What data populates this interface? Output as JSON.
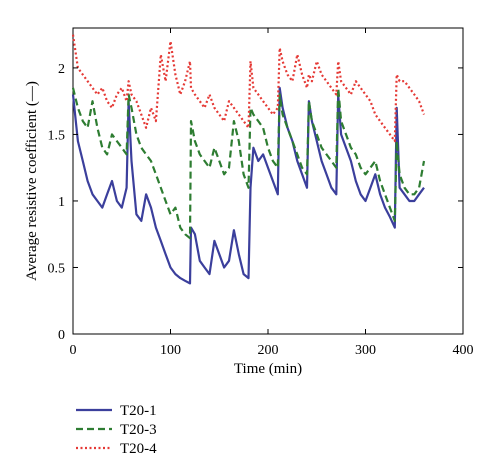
{
  "chart_data": {
    "type": "line",
    "xlabel": "Time (min)",
    "ylabel": "Average resistive coefficient (—)",
    "xlim": [
      0,
      400
    ],
    "ylim": [
      0,
      2.3
    ],
    "xticks": [
      0,
      100,
      200,
      300,
      400
    ],
    "yticks": [
      0,
      0.5,
      1,
      1.5,
      2
    ],
    "grid": false,
    "legend_position": "below",
    "series": [
      {
        "name": "T20-1",
        "color": "#3b3f9c",
        "dash": "solid",
        "x": [
          0,
          5,
          10,
          15,
          20,
          25,
          30,
          35,
          40,
          45,
          50,
          55,
          57,
          60,
          65,
          70,
          75,
          80,
          85,
          90,
          95,
          100,
          105,
          110,
          115,
          120,
          121,
          125,
          130,
          135,
          140,
          145,
          150,
          155,
          160,
          165,
          170,
          175,
          180,
          182,
          185,
          190,
          195,
          200,
          205,
          210,
          212,
          215,
          220,
          225,
          230,
          235,
          240,
          242,
          245,
          250,
          255,
          260,
          265,
          270,
          272,
          275,
          280,
          285,
          290,
          295,
          300,
          305,
          310,
          315,
          320,
          325,
          330,
          332,
          335,
          340,
          345,
          350,
          355,
          360
        ],
        "y": [
          1.8,
          1.45,
          1.3,
          1.15,
          1.05,
          1.0,
          0.95,
          1.05,
          1.15,
          1.0,
          0.95,
          1.1,
          1.75,
          1.3,
          0.9,
          0.85,
          1.05,
          0.95,
          0.8,
          0.7,
          0.6,
          0.5,
          0.45,
          0.42,
          0.4,
          0.38,
          0.8,
          0.75,
          0.55,
          0.5,
          0.45,
          0.7,
          0.6,
          0.5,
          0.55,
          0.78,
          0.6,
          0.45,
          0.42,
          1.1,
          1.4,
          1.3,
          1.35,
          1.25,
          1.15,
          1.05,
          1.85,
          1.7,
          1.55,
          1.45,
          1.3,
          1.2,
          1.1,
          1.75,
          1.6,
          1.45,
          1.3,
          1.2,
          1.1,
          1.05,
          1.8,
          1.5,
          1.4,
          1.3,
          1.15,
          1.05,
          1.0,
          1.1,
          1.2,
          1.05,
          0.95,
          0.88,
          0.8,
          1.7,
          1.1,
          1.05,
          1.0,
          1.0,
          1.05,
          1.1
        ]
      },
      {
        "name": "T20-3",
        "color": "#2e7d32",
        "dash": "dashed",
        "x": [
          0,
          5,
          10,
          15,
          20,
          25,
          30,
          35,
          40,
          45,
          50,
          55,
          57,
          60,
          65,
          70,
          75,
          80,
          85,
          90,
          95,
          100,
          105,
          110,
          115,
          120,
          121,
          125,
          130,
          135,
          140,
          145,
          150,
          155,
          160,
          165,
          170,
          175,
          180,
          182,
          185,
          190,
          195,
          200,
          205,
          210,
          212,
          215,
          220,
          225,
          230,
          235,
          240,
          242,
          245,
          250,
          255,
          260,
          265,
          270,
          272,
          275,
          280,
          285,
          290,
          295,
          300,
          305,
          310,
          315,
          320,
          325,
          330,
          332,
          335,
          340,
          345,
          350,
          355,
          360
        ],
        "y": [
          1.85,
          1.7,
          1.6,
          1.55,
          1.75,
          1.55,
          1.4,
          1.35,
          1.5,
          1.45,
          1.4,
          1.35,
          1.8,
          1.7,
          1.5,
          1.4,
          1.35,
          1.3,
          1.2,
          1.1,
          1.0,
          0.9,
          0.95,
          0.8,
          0.75,
          0.72,
          1.6,
          1.45,
          1.35,
          1.3,
          1.25,
          1.4,
          1.3,
          1.2,
          1.25,
          1.6,
          1.45,
          1.2,
          1.1,
          1.7,
          1.65,
          1.6,
          1.55,
          1.4,
          1.3,
          1.25,
          1.8,
          1.65,
          1.55,
          1.45,
          1.35,
          1.25,
          1.2,
          1.75,
          1.6,
          1.5,
          1.4,
          1.35,
          1.3,
          1.25,
          1.85,
          1.6,
          1.5,
          1.4,
          1.35,
          1.25,
          1.2,
          1.25,
          1.3,
          1.15,
          1.05,
          0.95,
          0.85,
          1.45,
          1.2,
          1.1,
          1.05,
          1.05,
          1.1,
          1.3
        ]
      },
      {
        "name": "T20-4",
        "color": "#e53935",
        "dash": "dotted",
        "x": [
          0,
          5,
          10,
          15,
          20,
          25,
          30,
          35,
          40,
          45,
          50,
          55,
          57,
          60,
          65,
          70,
          75,
          80,
          85,
          90,
          95,
          100,
          105,
          110,
          115,
          120,
          121,
          125,
          130,
          135,
          140,
          145,
          150,
          155,
          160,
          165,
          170,
          175,
          180,
          182,
          185,
          190,
          195,
          200,
          205,
          210,
          212,
          215,
          220,
          225,
          230,
          235,
          240,
          242,
          245,
          250,
          255,
          260,
          265,
          270,
          272,
          275,
          280,
          285,
          290,
          295,
          300,
          305,
          310,
          315,
          320,
          325,
          330,
          332,
          335,
          340,
          345,
          350,
          355,
          360
        ],
        "y": [
          2.25,
          2.0,
          1.95,
          1.9,
          1.85,
          1.8,
          1.85,
          1.75,
          1.7,
          1.8,
          1.85,
          1.75,
          1.9,
          1.8,
          1.75,
          1.65,
          1.55,
          1.7,
          1.6,
          2.1,
          1.9,
          2.2,
          1.95,
          1.8,
          1.9,
          2.05,
          1.85,
          1.8,
          1.75,
          1.7,
          1.8,
          1.7,
          1.65,
          1.6,
          1.75,
          1.7,
          1.65,
          1.6,
          1.55,
          2.05,
          1.85,
          1.8,
          1.75,
          1.7,
          1.65,
          1.7,
          2.15,
          2.05,
          1.95,
          1.9,
          2.1,
          1.95,
          1.85,
          1.95,
          1.9,
          2.05,
          1.95,
          1.9,
          1.85,
          1.8,
          2.05,
          1.9,
          1.85,
          1.8,
          1.9,
          1.85,
          1.8,
          1.75,
          1.65,
          1.6,
          1.55,
          1.5,
          1.45,
          1.95,
          1.9,
          1.9,
          1.85,
          1.8,
          1.75,
          1.65
        ]
      }
    ]
  }
}
